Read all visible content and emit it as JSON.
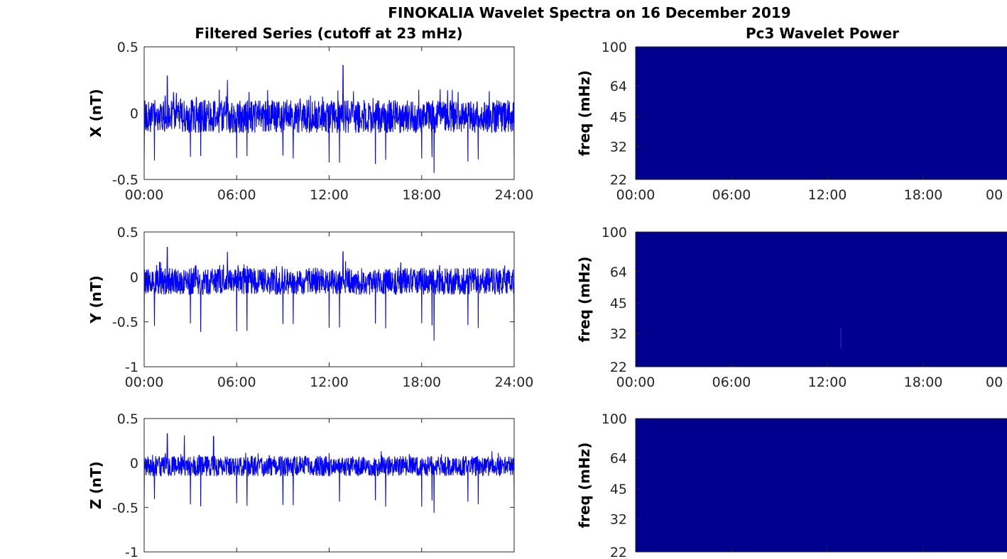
{
  "figure": {
    "title": "FINOKALIA Wavelet Spectra on 16 December 2019",
    "left_title": "Filtered Series (cutoff at 23 mHz)",
    "right_title": "Pc3 Wavelet Power",
    "line_color": "#0000ff",
    "spectrum_color": "#00008f"
  },
  "chart_data": [
    {
      "type": "line",
      "component": "X",
      "ylabel": "X (nT)",
      "ylim": [
        -0.5,
        0.5
      ],
      "yticks": [
        "0.5",
        "0",
        "-0.5"
      ],
      "xticks": [
        "00:00",
        "06:00",
        "12:00",
        "18:00",
        "24:00"
      ],
      "xlim_hours": [
        0,
        24
      ],
      "series": [
        {
          "baseline_band": [
            -0.15,
            0.1
          ],
          "spikes_up": [
            {
              "t": 1.5,
              "v": 0.28
            },
            {
              "t": 5.4,
              "v": 0.25
            },
            {
              "t": 12.9,
              "v": 0.36
            },
            {
              "t": 19.2,
              "v": 0.18
            }
          ],
          "dip_min_typical": -0.37,
          "dip_min_extreme": {
            "t": 18.8,
            "v": -0.45
          }
        }
      ]
    },
    {
      "type": "line",
      "component": "Y",
      "ylabel": "Y (nT)",
      "ylim": [
        -1,
        0.5
      ],
      "yticks": [
        "0.5",
        "0",
        "-0.5",
        "-1"
      ],
      "xticks": [
        "00:00",
        "06:00",
        "12:00",
        "18:00",
        "24:00"
      ],
      "xlim_hours": [
        0,
        24
      ],
      "series": [
        {
          "baseline_band": [
            -0.2,
            0.1
          ],
          "spikes_up": [
            {
              "t": 1.5,
              "v": 0.33
            },
            {
              "t": 5.4,
              "v": 0.28
            },
            {
              "t": 12.9,
              "v": 0.28
            }
          ],
          "dip_min_typical": -0.6,
          "dip_min_extreme": {
            "t": 18.8,
            "v": -0.71
          }
        }
      ]
    },
    {
      "type": "line",
      "component": "Z",
      "ylabel": "Z (nT)",
      "ylim": [
        -1,
        0.5
      ],
      "yticks": [
        "0.5",
        "0",
        "-0.5",
        "-1"
      ],
      "xticks": [],
      "xlim_hours": [
        0,
        24
      ],
      "series": [
        {
          "baseline_band": [
            -0.15,
            0.08
          ],
          "spikes_up": [
            {
              "t": 1.5,
              "v": 0.33
            },
            {
              "t": 2.6,
              "v": 0.31
            },
            {
              "t": 4.5,
              "v": 0.3
            }
          ],
          "dip_min_typical": -0.47,
          "dip_min_extreme": {
            "t": 18.8,
            "v": -0.56
          }
        }
      ]
    },
    {
      "type": "heatmap",
      "component": "X",
      "ylabel": "freq (mHz)",
      "yscale": "log",
      "ylim": [
        22,
        100
      ],
      "yticks": [
        "100",
        "64",
        "45",
        "32",
        "22"
      ],
      "xticks": [
        "00:00",
        "06:00",
        "12:00",
        "18:00",
        "00"
      ],
      "power": "uniformly low"
    },
    {
      "type": "heatmap",
      "component": "Y",
      "ylabel": "freq (mHz)",
      "yscale": "log",
      "ylim": [
        22,
        100
      ],
      "yticks": [
        "100",
        "64",
        "45",
        "32",
        "22"
      ],
      "xticks": [
        "00:00",
        "06:00",
        "12:00",
        "18:00",
        "00"
      ],
      "power": "uniformly low, faint trace near 12:50 at 22-32 mHz"
    },
    {
      "type": "heatmap",
      "component": "Z",
      "ylabel": "freq (mHz)",
      "yscale": "log",
      "ylim": [
        22,
        100
      ],
      "yticks": [
        "100",
        "64",
        "45",
        "32",
        "22"
      ],
      "xticks": [],
      "power": "uniformly low"
    }
  ]
}
